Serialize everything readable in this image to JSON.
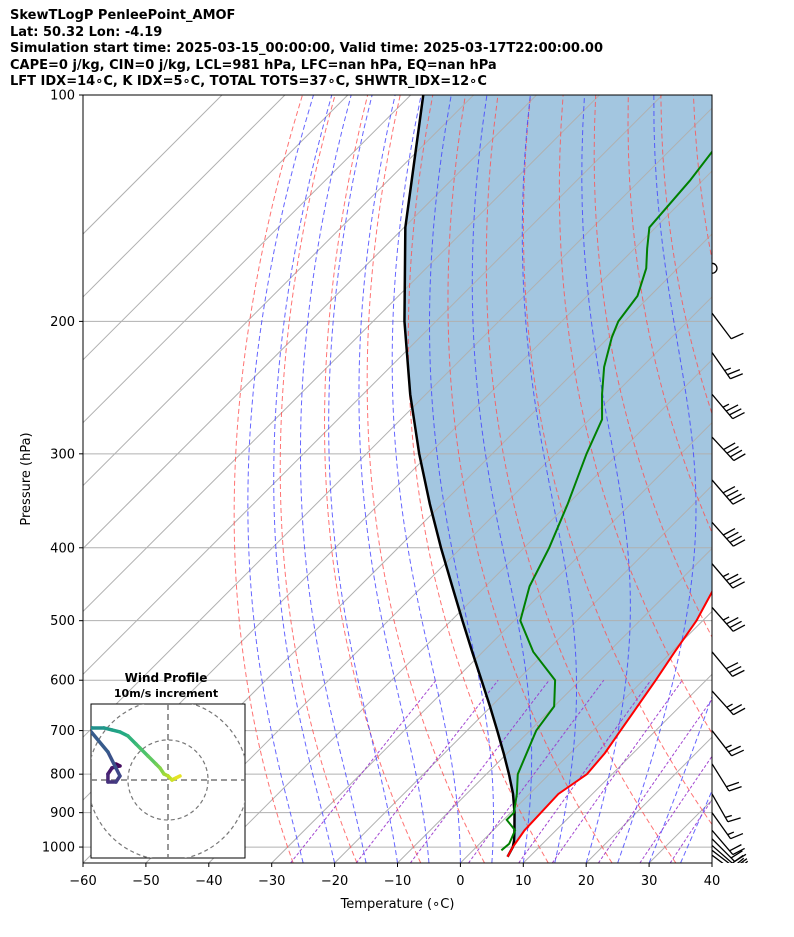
{
  "header": {
    "line1": "SkewTLogP PenleePoint_AMOF",
    "line2": "Lat: 50.32   Lon: -4.19",
    "line3": "Simulation start time: 2025-03-15_00:00:00, Valid time: 2025-03-17T22:00:00.00",
    "line4": "CAPE=0 j/kg, CIN=0 j/kg, LCL=981 hPa, LFC=nan hPa, EQ=nan hPa",
    "line5": "LFT IDX=14∘C, K IDX=5∘C, TOTAL TOTS=37∘C, SHWTR_IDX=12∘C"
  },
  "chart_data": [
    {
      "type": "line",
      "subtype": "skew-t log-p",
      "xlabel": "Temperature (∘C)",
      "ylabel": "Pressure (hPa)",
      "xlim": [
        -60,
        40
      ],
      "ylim": [
        1050,
        100
      ],
      "y_scale": "log",
      "skew": "45 degrees",
      "grid": true,
      "x_ticks": [
        "−60",
        "−50",
        "−40",
        "−30",
        "−20",
        "−10",
        "0",
        "10",
        "20",
        "30",
        "40"
      ],
      "y_ticks": [
        "100",
        "200",
        "300",
        "400",
        "500",
        "600",
        "700",
        "800",
        "900",
        "1000"
      ],
      "colors": {
        "temperature": "#ff0000",
        "dewpoint": "#008000",
        "parcel": "#000000",
        "shading": "#a3c6e0",
        "dry_adiabats": "#ff5050",
        "moist_adiabats": "#4040ff",
        "mixing_ratio": "#9933cc",
        "isotherms": "#b0b0b0"
      },
      "series": [
        {
          "key": "temperature",
          "points": [
            [
              1030,
              6.5
            ],
            [
              1000,
              5.8
            ],
            [
              950,
              5.0
            ],
            [
              900,
              4.8
            ],
            [
              850,
              4.6
            ],
            [
              800,
              6.0
            ],
            [
              750,
              5.5
            ],
            [
              700,
              4.4
            ],
            [
              600,
              2.0
            ],
            [
              550,
              0.5
            ],
            [
              500,
              -1.0
            ],
            [
              450,
              -3.5
            ],
            [
              400,
              -7.5
            ],
            [
              350,
              -12.0
            ],
            [
              300,
              -17.5
            ],
            [
              260,
              -23.0
            ],
            [
              240,
              -26.0
            ],
            [
              220,
              -29.5
            ],
            [
              205,
              -32.0
            ],
            [
              180,
              -32.5
            ],
            [
              160,
              -34.8
            ],
            [
              140,
              -38.5
            ],
            [
              120,
              -41.5
            ],
            [
              110,
              -43.0
            ],
            [
              100,
              -45.0
            ]
          ]
        },
        {
          "key": "dewpoint",
          "points": [
            [
              1010,
              4.5
            ],
            [
              990,
              4.7
            ],
            [
              950,
              3.5
            ],
            [
              920,
              0.5
            ],
            [
              900,
              0.5
            ],
            [
              850,
              -2.0
            ],
            [
              800,
              -5.0
            ],
            [
              700,
              -9.0
            ],
            [
              650,
              -10.0
            ],
            [
              600,
              -14.0
            ],
            [
              550,
              -22.0
            ],
            [
              500,
              -29.0
            ],
            [
              450,
              -33.0
            ],
            [
              400,
              -36.0
            ],
            [
              350,
              -40.0
            ],
            [
              300,
              -45.0
            ],
            [
              270,
              -48.0
            ],
            [
              250,
              -52.0
            ],
            [
              230,
              -56.0
            ],
            [
              210,
              -59.5
            ],
            [
              200,
              -61.0
            ],
            [
              185,
              -62.0
            ],
            [
              170,
              -65.0
            ],
            [
              160,
              -68.0
            ],
            [
              150,
              -71.0
            ],
            [
              130,
              -72.0
            ],
            [
              110,
              -74.0
            ],
            [
              100,
              -77.0
            ]
          ]
        },
        {
          "key": "parcel",
          "points": [
            [
              1030,
              6.5
            ],
            [
              1000,
              5.8
            ],
            [
              981,
              5.0
            ],
            [
              950,
              3.4
            ],
            [
              900,
              0.6
            ],
            [
              850,
              -2.6
            ],
            [
              800,
              -6.4
            ],
            [
              750,
              -10.6
            ],
            [
              700,
              -15.2
            ],
            [
              650,
              -20.2
            ],
            [
              600,
              -25.7
            ],
            [
              550,
              -31.7
            ],
            [
              500,
              -38.2
            ],
            [
              450,
              -45.3
            ],
            [
              400,
              -53.2
            ],
            [
              350,
              -61.9
            ],
            [
              300,
              -71.6
            ],
            [
              250,
              -82.5
            ],
            [
              200,
              -95.0
            ],
            [
              150,
              -109.8
            ],
            [
              100,
              -128.0
            ]
          ]
        }
      ]
    },
    {
      "type": "line",
      "subtype": "wind barbs",
      "barbs": [
        {
          "p": 1025,
          "u": -16,
          "v": 12
        },
        {
          "p": 1010,
          "u": -17,
          "v": 13
        },
        {
          "p": 995,
          "u": -16,
          "v": 14
        },
        {
          "p": 975,
          "u": -14,
          "v": 14
        },
        {
          "p": 950,
          "u": -12,
          "v": 14
        },
        {
          "p": 900,
          "u": -10,
          "v": 14
        },
        {
          "p": 850,
          "u": -8,
          "v": 14
        },
        {
          "p": 775,
          "u": -10,
          "v": 16
        },
        {
          "p": 700,
          "u": -14,
          "v": 18
        },
        {
          "p": 620,
          "u": -18,
          "v": 20
        },
        {
          "p": 550,
          "u": -20,
          "v": 24
        },
        {
          "p": 480,
          "u": -22,
          "v": 25
        },
        {
          "p": 420,
          "u": -24,
          "v": 28
        },
        {
          "p": 370,
          "u": -25,
          "v": 28
        },
        {
          "p": 325,
          "u": -26,
          "v": 30
        },
        {
          "p": 285,
          "u": -26,
          "v": 28
        },
        {
          "p": 250,
          "u": -22,
          "v": 26
        },
        {
          "p": 220,
          "u": -14,
          "v": 20
        },
        {
          "p": 195,
          "u": -6,
          "v": 8
        },
        {
          "p": 170,
          "u": 0,
          "v": 0
        },
        {
          "p": 145,
          "u": 5,
          "v": -3
        },
        {
          "p": 125,
          "u": 6,
          "v": -0.5
        }
      ]
    },
    {
      "type": "line",
      "subtype": "hodograph",
      "title": "Wind Profile",
      "subtitle": "10m/s increment",
      "range": [
        -25,
        25
      ],
      "rings": [
        10,
        20,
        30
      ],
      "colormap": "viridis",
      "u": [
        3,
        2,
        1,
        0,
        -1,
        -2,
        -3,
        -5,
        -7,
        -8,
        -10,
        -12,
        -14,
        -16,
        -19,
        -21,
        -23,
        -25,
        -23,
        -20,
        -15,
        -13,
        -12,
        -13,
        -15,
        -15,
        -14,
        -12,
        -13
      ],
      "v": [
        1,
        0.5,
        0,
        1,
        1.5,
        3,
        4,
        6,
        8,
        9,
        11,
        12,
        12.5,
        13,
        13,
        12.5,
        12,
        12,
        14,
        13,
        7,
        3,
        1,
        -0.5,
        -0.5,
        1.5,
        3,
        3.5,
        4
      ]
    }
  ]
}
